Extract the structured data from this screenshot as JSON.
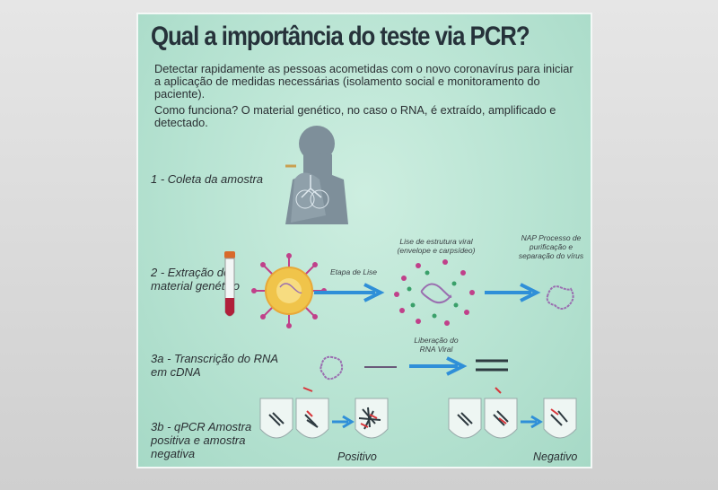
{
  "title": "Qual a importância do teste via PCR?",
  "intro": "Detectar rapidamente as pessoas acometidas com o novo coronavírus para iniciar a aplicação de medidas necessárias (isolamento social e monitoramento do paciente).",
  "how": "Como funciona? O material genético, no caso o RNA, é extraído, amplificado e detectado.",
  "steps": {
    "s1": "1 - Coleta da amostra",
    "s2": "2 - Extração de material genético",
    "s3a": "3a - Transcrição do RNA em cDNA",
    "s3b": "3b - qPCR Amostra positiva e amostra negativa"
  },
  "notes": {
    "etapa": "Etapa de Lise",
    "lise": "Lise de estrutura viral (envelope e carpsídeo)",
    "nap": "NAP Processo de purificação e separação do vírus",
    "liberacao": "Liberação do RNA Viral"
  },
  "results": {
    "positivo": "Positivo",
    "negativo": "Negativo"
  },
  "colors": {
    "background": "#b7e3d2",
    "arrow": "#2f8fd8",
    "virus_spike": "#c0408a",
    "virus_core": "#f0c44a",
    "rna": "#9a6fb0",
    "silhouette": "#7e8f9a"
  }
}
